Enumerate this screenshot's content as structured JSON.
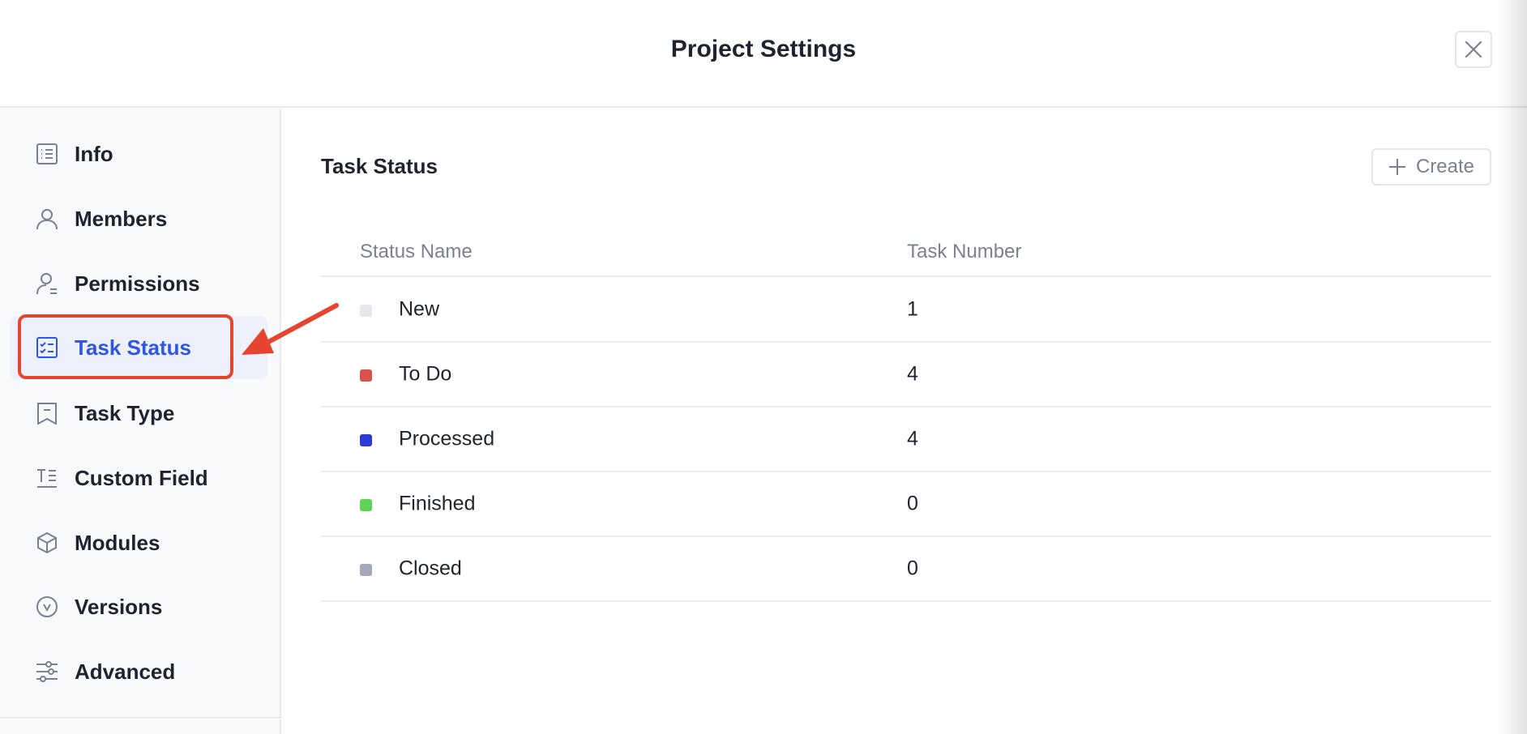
{
  "header": {
    "title": "Project Settings",
    "close_icon": "close-icon"
  },
  "sidebar": {
    "items": [
      {
        "label": "Info",
        "icon": "list-icon"
      },
      {
        "label": "Members",
        "icon": "user-icon"
      },
      {
        "label": "Permissions",
        "icon": "user-permissions-icon"
      },
      {
        "label": "Task Status",
        "icon": "checklist-icon",
        "active": true
      },
      {
        "label": "Task Type",
        "icon": "bookmark-icon"
      },
      {
        "label": "Custom Field",
        "icon": "text-field-icon"
      },
      {
        "label": "Modules",
        "icon": "cube-icon"
      },
      {
        "label": "Versions",
        "icon": "chevron-circle-icon"
      },
      {
        "label": "Advanced",
        "icon": "sliders-icon"
      }
    ],
    "active_color": "#2f56e0"
  },
  "main": {
    "title": "Task Status",
    "create_label": "Create",
    "columns": [
      "Status Name",
      "Task Number"
    ],
    "rows": [
      {
        "name": "New",
        "count": "1",
        "color": "#e5e8ef"
      },
      {
        "name": "To Do",
        "count": "4",
        "color": "#d9534a"
      },
      {
        "name": "Processed",
        "count": "4",
        "color": "#2a3bd6"
      },
      {
        "name": "Finished",
        "count": "0",
        "color": "#5ed454"
      },
      {
        "name": "Closed",
        "count": "0",
        "color": "#a3a8ba"
      }
    ]
  },
  "annotation": {
    "color": "#e5452e"
  }
}
